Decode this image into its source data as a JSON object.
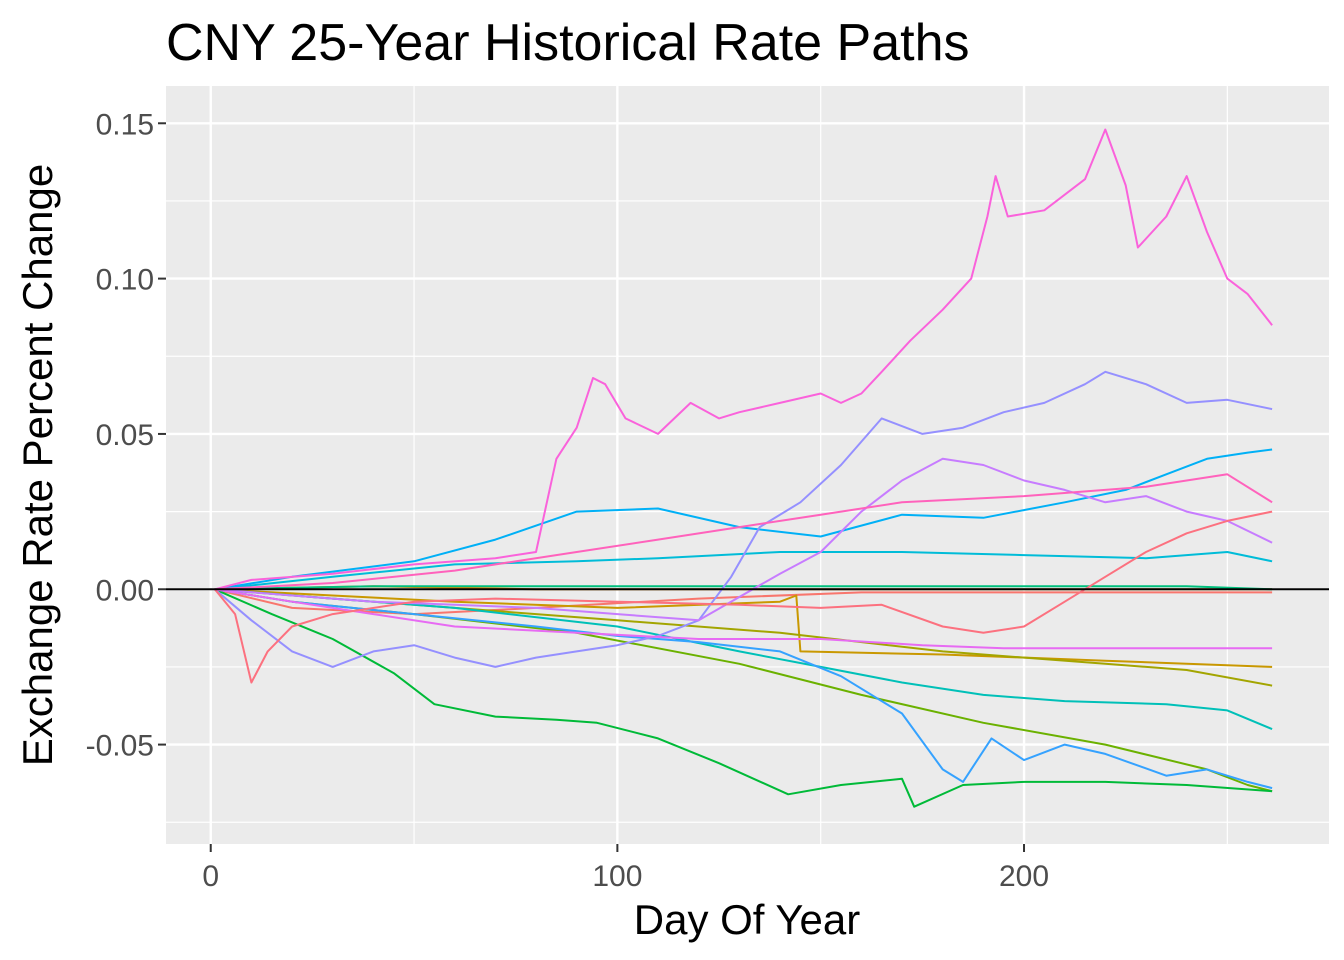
{
  "chart_data": {
    "type": "line",
    "title": "CNY 25-Year Historical Rate Paths",
    "xlabel": "Day Of Year",
    "ylabel": "Exchange Rate Percent Change",
    "xlim": [
      -11,
      275
    ],
    "ylim": [
      -0.082,
      0.162
    ],
    "x_ticks": [
      0,
      100,
      200
    ],
    "x_tick_labels": [
      "0",
      "100",
      "200"
    ],
    "x_minor_ticks": [
      50,
      150,
      250
    ],
    "y_ticks": [
      -0.05,
      0,
      0.05,
      0.1,
      0.15
    ],
    "y_tick_labels": [
      "-0.05",
      "0.00",
      "0.05",
      "0.10",
      "0.15"
    ],
    "y_minor_ticks": [
      -0.075,
      -0.025,
      0.025,
      0.075,
      0.125
    ],
    "grid": true,
    "legend": "none",
    "hline": 0,
    "panel_background": "#ebebeb",
    "series": [
      {
        "color": "#F8766D",
        "values": [
          [
            1,
            0
          ],
          [
            20,
            -0.006
          ],
          [
            50,
            -0.008
          ],
          [
            80,
            -0.006
          ],
          [
            120,
            -0.003
          ],
          [
            160,
            -0.001
          ],
          [
            200,
            -0.001
          ],
          [
            250,
            -0.001
          ],
          [
            261,
            -0.001
          ]
        ]
      },
      {
        "color": "#E58700",
        "values": [
          [
            1,
            0
          ],
          [
            40,
            0.001
          ],
          [
            80,
            0
          ],
          [
            130,
            0
          ],
          [
            180,
            0
          ],
          [
            230,
            0
          ],
          [
            261,
            0
          ]
        ]
      },
      {
        "color": "#C99800",
        "values": [
          [
            1,
            0
          ],
          [
            30,
            -0.002
          ],
          [
            60,
            -0.004
          ],
          [
            100,
            -0.006
          ],
          [
            140,
            -0.004
          ],
          [
            144,
            -0.002
          ],
          [
            145,
            -0.02
          ],
          [
            180,
            -0.021
          ],
          [
            220,
            -0.023
          ],
          [
            261,
            -0.025
          ]
        ]
      },
      {
        "color": "#A3A500",
        "values": [
          [
            1,
            0
          ],
          [
            30,
            -0.003
          ],
          [
            60,
            -0.006
          ],
          [
            100,
            -0.01
          ],
          [
            140,
            -0.014
          ],
          [
            180,
            -0.02
          ],
          [
            220,
            -0.024
          ],
          [
            240,
            -0.026
          ],
          [
            261,
            -0.031
          ]
        ]
      },
      {
        "color": "#6BB100",
        "values": [
          [
            1,
            0
          ],
          [
            20,
            -0.004
          ],
          [
            50,
            -0.008
          ],
          [
            90,
            -0.014
          ],
          [
            130,
            -0.024
          ],
          [
            160,
            -0.034
          ],
          [
            190,
            -0.043
          ],
          [
            220,
            -0.05
          ],
          [
            245,
            -0.058
          ],
          [
            255,
            -0.063
          ],
          [
            261,
            -0.065
          ]
        ]
      },
      {
        "color": "#00BA38",
        "values": [
          [
            1,
            0
          ],
          [
            15,
            -0.008
          ],
          [
            30,
            -0.016
          ],
          [
            45,
            -0.027
          ],
          [
            55,
            -0.037
          ],
          [
            70,
            -0.041
          ],
          [
            85,
            -0.042
          ],
          [
            95,
            -0.043
          ],
          [
            110,
            -0.048
          ],
          [
            125,
            -0.056
          ],
          [
            142,
            -0.066
          ],
          [
            155,
            -0.063
          ],
          [
            170,
            -0.061
          ],
          [
            173,
            -0.07
          ],
          [
            185,
            -0.063
          ],
          [
            200,
            -0.062
          ],
          [
            220,
            -0.062
          ],
          [
            240,
            -0.063
          ],
          [
            261,
            -0.065
          ]
        ]
      },
      {
        "color": "#00BF7D",
        "values": [
          [
            1,
            0
          ],
          [
            40,
            0.001
          ],
          [
            80,
            0.001
          ],
          [
            120,
            0.001
          ],
          [
            160,
            0.001
          ],
          [
            200,
            0.001
          ],
          [
            240,
            0.001
          ],
          [
            261,
            0
          ]
        ]
      },
      {
        "color": "#00C0B8",
        "values": [
          [
            1,
            0
          ],
          [
            30,
            -0.003
          ],
          [
            60,
            -0.006
          ],
          [
            100,
            -0.012
          ],
          [
            130,
            -0.02
          ],
          [
            150,
            -0.025
          ],
          [
            170,
            -0.03
          ],
          [
            190,
            -0.034
          ],
          [
            210,
            -0.036
          ],
          [
            235,
            -0.037
          ],
          [
            250,
            -0.039
          ],
          [
            261,
            -0.045
          ]
        ]
      },
      {
        "color": "#00BCD8",
        "values": [
          [
            1,
            0
          ],
          [
            30,
            0.004
          ],
          [
            60,
            0.008
          ],
          [
            90,
            0.009
          ],
          [
            110,
            0.01
          ],
          [
            140,
            0.012
          ],
          [
            170,
            0.012
          ],
          [
            200,
            0.011
          ],
          [
            230,
            0.01
          ],
          [
            250,
            0.012
          ],
          [
            261,
            0.009
          ]
        ]
      },
      {
        "color": "#00B0F6",
        "values": [
          [
            1,
            0
          ],
          [
            20,
            0.004
          ],
          [
            50,
            0.009
          ],
          [
            70,
            0.016
          ],
          [
            90,
            0.025
          ],
          [
            110,
            0.026
          ],
          [
            130,
            0.02
          ],
          [
            150,
            0.017
          ],
          [
            170,
            0.024
          ],
          [
            190,
            0.023
          ],
          [
            210,
            0.028
          ],
          [
            225,
            0.032
          ],
          [
            235,
            0.037
          ],
          [
            245,
            0.042
          ],
          [
            255,
            0.044
          ],
          [
            261,
            0.045
          ]
        ]
      },
      {
        "color": "#35A2FF",
        "values": [
          [
            1,
            0
          ],
          [
            20,
            -0.004
          ],
          [
            50,
            -0.008
          ],
          [
            80,
            -0.012
          ],
          [
            100,
            -0.015
          ],
          [
            120,
            -0.017
          ],
          [
            140,
            -0.02
          ],
          [
            155,
            -0.028
          ],
          [
            170,
            -0.04
          ],
          [
            180,
            -0.058
          ],
          [
            185,
            -0.062
          ],
          [
            192,
            -0.048
          ],
          [
            200,
            -0.055
          ],
          [
            210,
            -0.05
          ],
          [
            220,
            -0.053
          ],
          [
            235,
            -0.06
          ],
          [
            245,
            -0.058
          ],
          [
            255,
            -0.062
          ],
          [
            261,
            -0.064
          ]
        ]
      },
      {
        "color": "#9590FF",
        "values": [
          [
            1,
            0
          ],
          [
            10,
            -0.01
          ],
          [
            20,
            -0.02
          ],
          [
            30,
            -0.025
          ],
          [
            40,
            -0.02
          ],
          [
            50,
            -0.018
          ],
          [
            60,
            -0.022
          ],
          [
            70,
            -0.025
          ],
          [
            80,
            -0.022
          ],
          [
            90,
            -0.02
          ],
          [
            100,
            -0.018
          ],
          [
            110,
            -0.015
          ],
          [
            120,
            -0.01
          ],
          [
            128,
            0.004
          ],
          [
            135,
            0.02
          ],
          [
            145,
            0.028
          ],
          [
            155,
            0.04
          ],
          [
            165,
            0.055
          ],
          [
            175,
            0.05
          ],
          [
            185,
            0.052
          ],
          [
            195,
            0.057
          ],
          [
            205,
            0.06
          ],
          [
            215,
            0.066
          ],
          [
            220,
            0.07
          ],
          [
            230,
            0.066
          ],
          [
            240,
            0.06
          ],
          [
            250,
            0.061
          ],
          [
            261,
            0.058
          ]
        ]
      },
      {
        "color": "#C77CFF",
        "values": [
          [
            1,
            0
          ],
          [
            20,
            -0.002
          ],
          [
            40,
            -0.004
          ],
          [
            60,
            -0.005
          ],
          [
            80,
            -0.006
          ],
          [
            100,
            -0.008
          ],
          [
            120,
            -0.01
          ],
          [
            140,
            0.005
          ],
          [
            150,
            0.012
          ],
          [
            160,
            0.025
          ],
          [
            170,
            0.035
          ],
          [
            180,
            0.042
          ],
          [
            190,
            0.04
          ],
          [
            200,
            0.035
          ],
          [
            210,
            0.032
          ],
          [
            220,
            0.028
          ],
          [
            230,
            0.03
          ],
          [
            240,
            0.025
          ],
          [
            250,
            0.022
          ],
          [
            261,
            0.015
          ]
        ]
      },
      {
        "color": "#E76BF3",
        "values": [
          [
            1,
            0
          ],
          [
            20,
            -0.004
          ],
          [
            40,
            -0.008
          ],
          [
            60,
            -0.012
          ],
          [
            90,
            -0.014
          ],
          [
            120,
            -0.016
          ],
          [
            150,
            -0.016
          ],
          [
            175,
            -0.018
          ],
          [
            195,
            -0.019
          ],
          [
            220,
            -0.019
          ],
          [
            240,
            -0.019
          ],
          [
            261,
            -0.019
          ]
        ]
      },
      {
        "color": "#FA62DB",
        "values": [
          [
            1,
            0
          ],
          [
            10,
            0.003
          ],
          [
            30,
            0.005
          ],
          [
            50,
            0.008
          ],
          [
            70,
            0.01
          ],
          [
            80,
            0.012
          ],
          [
            85,
            0.042
          ],
          [
            90,
            0.052
          ],
          [
            94,
            0.068
          ],
          [
            97,
            0.066
          ],
          [
            102,
            0.055
          ],
          [
            110,
            0.05
          ],
          [
            118,
            0.06
          ],
          [
            125,
            0.055
          ],
          [
            130,
            0.057
          ],
          [
            140,
            0.06
          ],
          [
            150,
            0.063
          ],
          [
            155,
            0.06
          ],
          [
            160,
            0.063
          ],
          [
            165,
            0.07
          ],
          [
            172,
            0.08
          ],
          [
            180,
            0.09
          ],
          [
            187,
            0.1
          ],
          [
            191,
            0.12
          ],
          [
            193,
            0.133
          ],
          [
            196,
            0.12
          ],
          [
            205,
            0.122
          ],
          [
            215,
            0.132
          ],
          [
            220,
            0.148
          ],
          [
            225,
            0.13
          ],
          [
            228,
            0.11
          ],
          [
            235,
            0.12
          ],
          [
            240,
            0.133
          ],
          [
            245,
            0.115
          ],
          [
            250,
            0.1
          ],
          [
            255,
            0.095
          ],
          [
            261,
            0.085
          ]
        ]
      },
      {
        "color": "#FF62BC",
        "values": [
          [
            1,
            0
          ],
          [
            30,
            0.002
          ],
          [
            60,
            0.006
          ],
          [
            90,
            0.012
          ],
          [
            110,
            0.016
          ],
          [
            130,
            0.02
          ],
          [
            150,
            0.024
          ],
          [
            170,
            0.028
          ],
          [
            200,
            0.03
          ],
          [
            230,
            0.033
          ],
          [
            250,
            0.037
          ],
          [
            261,
            0.028
          ]
        ]
      },
      {
        "color": "#FC717F",
        "values": [
          [
            1,
            0
          ],
          [
            6,
            -0.008
          ],
          [
            10,
            -0.03
          ],
          [
            14,
            -0.02
          ],
          [
            20,
            -0.012
          ],
          [
            30,
            -0.008
          ],
          [
            50,
            -0.004
          ],
          [
            70,
            -0.003
          ],
          [
            100,
            -0.004
          ],
          [
            130,
            -0.005
          ],
          [
            150,
            -0.006
          ],
          [
            165,
            -0.005
          ],
          [
            180,
            -0.012
          ],
          [
            190,
            -0.014
          ],
          [
            200,
            -0.012
          ],
          [
            210,
            -0.004
          ],
          [
            220,
            0.004
          ],
          [
            230,
            0.012
          ],
          [
            240,
            0.018
          ],
          [
            250,
            0.022
          ],
          [
            261,
            0.025
          ]
        ]
      }
    ]
  }
}
